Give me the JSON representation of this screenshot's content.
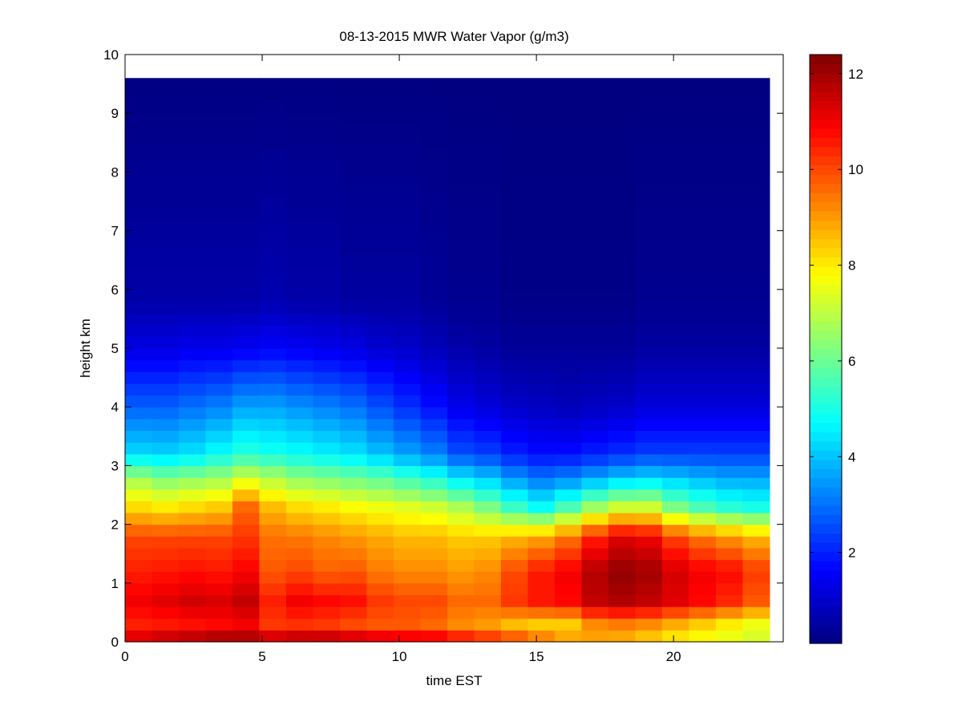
{
  "chart_data": {
    "type": "heatmap",
    "title": "08-13-2015 MWR Water Vapor (g/m3)",
    "xlabel": "time EST",
    "ylabel": "height km",
    "xlim": [
      0,
      24
    ],
    "ylim": [
      0,
      10
    ],
    "x_ticks": [
      "0",
      "5",
      "10",
      "15",
      "20"
    ],
    "x_tick_values": [
      0,
      5,
      10,
      15,
      20
    ],
    "y_ticks": [
      "0",
      "1",
      "2",
      "3",
      "4",
      "5",
      "6",
      "7",
      "8",
      "9",
      "10"
    ],
    "y_tick_values": [
      0,
      1,
      2,
      3,
      4,
      5,
      6,
      7,
      8,
      9,
      10
    ],
    "colorbar": {
      "min": 0.1,
      "max": 12.4,
      "colormap": "jet",
      "ticks": [
        "2",
        "4",
        "6",
        "8",
        "10",
        "12"
      ],
      "tick_values": [
        2,
        4,
        6,
        8,
        10,
        12
      ]
    },
    "x": [
      0,
      1,
      2,
      3,
      4,
      5,
      6,
      7,
      8,
      9,
      10,
      11,
      12,
      13,
      14,
      15,
      16,
      17,
      18,
      19,
      20,
      21,
      22,
      23
    ],
    "x_extent": [
      0,
      23.5
    ],
    "y_extent": [
      0,
      9.75
    ],
    "profiles": [
      [
        [
          0.0,
          11.5
        ],
        [
          0.3,
          10.5
        ],
        [
          0.7,
          11.0
        ],
        [
          1.2,
          10.5
        ],
        [
          1.8,
          10.0
        ],
        [
          2.3,
          8.2
        ],
        [
          2.8,
          6.6
        ],
        [
          3.2,
          4.3
        ],
        [
          4.0,
          2.8
        ],
        [
          5.0,
          1.3
        ],
        [
          5.8,
          0.6
        ],
        [
          9.75,
          0.1
        ]
      ],
      [
        [
          0.0,
          11.8
        ],
        [
          0.3,
          10.6
        ],
        [
          0.7,
          11.2
        ],
        [
          1.2,
          10.6
        ],
        [
          1.8,
          10.0
        ],
        [
          2.3,
          8.0
        ],
        [
          2.8,
          6.2
        ],
        [
          3.2,
          4.2
        ],
        [
          4.0,
          2.8
        ],
        [
          5.0,
          1.3
        ],
        [
          5.8,
          0.6
        ],
        [
          9.75,
          0.1
        ]
      ],
      [
        [
          0.0,
          12.0
        ],
        [
          0.3,
          10.7
        ],
        [
          0.7,
          11.4
        ],
        [
          1.2,
          10.7
        ],
        [
          1.8,
          10.0
        ],
        [
          2.3,
          8.2
        ],
        [
          2.8,
          6.4
        ],
        [
          3.2,
          4.4
        ],
        [
          4.0,
          3.0
        ],
        [
          5.0,
          1.4
        ],
        [
          5.8,
          0.6
        ],
        [
          9.75,
          0.1
        ]
      ],
      [
        [
          0.0,
          12.2
        ],
        [
          0.3,
          10.8
        ],
        [
          0.7,
          11.3
        ],
        [
          1.2,
          10.6
        ],
        [
          1.8,
          10.0
        ],
        [
          2.3,
          8.4
        ],
        [
          2.8,
          6.6
        ],
        [
          3.2,
          4.8
        ],
        [
          4.0,
          3.2
        ],
        [
          5.0,
          1.4
        ],
        [
          5.8,
          0.6
        ],
        [
          9.75,
          0.1
        ]
      ],
      [
        [
          0.0,
          12.1
        ],
        [
          0.3,
          11.0
        ],
        [
          0.7,
          11.6
        ],
        [
          1.2,
          10.9
        ],
        [
          1.8,
          10.2
        ],
        [
          2.3,
          9.6
        ],
        [
          2.8,
          7.2
        ],
        [
          3.2,
          5.2
        ],
        [
          4.0,
          3.6
        ],
        [
          5.0,
          1.5
        ],
        [
          5.8,
          0.6
        ],
        [
          9.75,
          0.1
        ]
      ],
      [
        [
          0.0,
          11.8
        ],
        [
          0.3,
          10.2
        ],
        [
          0.7,
          10.5
        ],
        [
          1.2,
          9.8
        ],
        [
          1.8,
          9.5
        ],
        [
          2.3,
          8.6
        ],
        [
          2.8,
          6.8
        ],
        [
          3.2,
          5.0
        ],
        [
          4.0,
          3.6
        ],
        [
          5.0,
          1.6
        ],
        [
          5.8,
          0.7
        ],
        [
          9.75,
          0.1
        ]
      ],
      [
        [
          0.0,
          12.0
        ],
        [
          0.3,
          10.3
        ],
        [
          0.7,
          11.0
        ],
        [
          1.2,
          10.0
        ],
        [
          1.8,
          9.4
        ],
        [
          2.3,
          8.2
        ],
        [
          2.8,
          6.4
        ],
        [
          3.2,
          4.8
        ],
        [
          4.0,
          3.4
        ],
        [
          5.0,
          1.5
        ],
        [
          5.8,
          0.6
        ],
        [
          9.75,
          0.1
        ]
      ],
      [
        [
          0.0,
          12.0
        ],
        [
          0.3,
          10.2
        ],
        [
          0.7,
          10.8
        ],
        [
          1.2,
          9.7
        ],
        [
          1.8,
          9.2
        ],
        [
          2.3,
          8.0
        ],
        [
          2.8,
          6.2
        ],
        [
          3.2,
          4.6
        ],
        [
          4.0,
          3.2
        ],
        [
          5.0,
          1.4
        ],
        [
          5.8,
          0.6
        ],
        [
          9.75,
          0.1
        ]
      ],
      [
        [
          0.0,
          11.8
        ],
        [
          0.3,
          10.0
        ],
        [
          0.7,
          10.7
        ],
        [
          1.2,
          9.8
        ],
        [
          1.8,
          9.0
        ],
        [
          2.3,
          7.8
        ],
        [
          2.8,
          6.0
        ],
        [
          3.2,
          4.4
        ],
        [
          4.0,
          3.0
        ],
        [
          5.0,
          1.3
        ],
        [
          5.8,
          0.5
        ],
        [
          9.75,
          0.1
        ]
      ],
      [
        [
          0.0,
          11.6
        ],
        [
          0.3,
          9.8
        ],
        [
          0.7,
          10.2
        ],
        [
          1.2,
          9.4
        ],
        [
          1.8,
          8.8
        ],
        [
          2.3,
          7.6
        ],
        [
          2.8,
          5.8
        ],
        [
          3.2,
          4.0
        ],
        [
          4.0,
          2.6
        ],
        [
          5.0,
          1.1
        ],
        [
          5.8,
          0.5
        ],
        [
          9.75,
          0.1
        ]
      ],
      [
        [
          0.0,
          11.4
        ],
        [
          0.3,
          9.8
        ],
        [
          0.7,
          10.0
        ],
        [
          1.2,
          9.2
        ],
        [
          1.8,
          8.6
        ],
        [
          2.3,
          7.4
        ],
        [
          2.8,
          5.4
        ],
        [
          3.2,
          3.6
        ],
        [
          4.0,
          2.2
        ],
        [
          5.0,
          1.0
        ],
        [
          5.8,
          0.5
        ],
        [
          9.75,
          0.1
        ]
      ],
      [
        [
          0.0,
          11.4
        ],
        [
          0.3,
          9.6
        ],
        [
          0.7,
          10.0
        ],
        [
          1.2,
          9.2
        ],
        [
          1.8,
          8.6
        ],
        [
          2.3,
          7.2
        ],
        [
          2.8,
          5.0
        ],
        [
          3.2,
          3.2
        ],
        [
          4.0,
          1.8
        ],
        [
          5.0,
          0.8
        ],
        [
          5.8,
          0.4
        ],
        [
          9.75,
          0.1
        ]
      ],
      [
        [
          0.0,
          11.0
        ],
        [
          0.3,
          9.2
        ],
        [
          0.7,
          9.6
        ],
        [
          1.2,
          9.0
        ],
        [
          1.8,
          8.4
        ],
        [
          2.3,
          6.8
        ],
        [
          2.8,
          4.4
        ],
        [
          3.2,
          2.6
        ],
        [
          4.0,
          1.4
        ],
        [
          5.0,
          0.6
        ],
        [
          5.8,
          0.3
        ],
        [
          9.75,
          0.1
        ]
      ],
      [
        [
          0.0,
          10.6
        ],
        [
          0.3,
          9.0
        ],
        [
          0.7,
          9.6
        ],
        [
          1.2,
          9.2
        ],
        [
          1.8,
          8.4
        ],
        [
          2.3,
          6.2
        ],
        [
          2.8,
          4.0
        ],
        [
          3.2,
          2.4
        ],
        [
          4.0,
          1.2
        ],
        [
          5.0,
          0.5
        ],
        [
          5.8,
          0.3
        ],
        [
          9.75,
          0.1
        ]
      ],
      [
        [
          0.0,
          10.2
        ],
        [
          0.3,
          8.6
        ],
        [
          0.7,
          10.2
        ],
        [
          1.2,
          10.0
        ],
        [
          1.8,
          8.6
        ],
        [
          2.3,
          5.4
        ],
        [
          2.8,
          3.4
        ],
        [
          3.2,
          2.0
        ],
        [
          4.0,
          1.0
        ],
        [
          5.0,
          0.4
        ],
        [
          5.8,
          0.2
        ],
        [
          9.75,
          0.1
        ]
      ],
      [
        [
          0.0,
          9.6
        ],
        [
          0.3,
          8.4
        ],
        [
          0.7,
          10.6
        ],
        [
          1.2,
          10.6
        ],
        [
          1.8,
          8.8
        ],
        [
          2.3,
          4.8
        ],
        [
          2.8,
          3.0
        ],
        [
          3.2,
          1.8
        ],
        [
          4.0,
          0.9
        ],
        [
          5.0,
          0.4
        ],
        [
          5.8,
          0.2
        ],
        [
          9.75,
          0.1
        ]
      ],
      [
        [
          0.0,
          9.0
        ],
        [
          0.3,
          8.4
        ],
        [
          0.7,
          10.8
        ],
        [
          1.2,
          11.0
        ],
        [
          1.8,
          9.4
        ],
        [
          2.3,
          5.6
        ],
        [
          2.8,
          3.2
        ],
        [
          3.2,
          1.8
        ],
        [
          4.0,
          0.8
        ],
        [
          5.0,
          0.4
        ],
        [
          5.8,
          0.2
        ],
        [
          9.75,
          0.1
        ]
      ],
      [
        [
          0.0,
          8.8
        ],
        [
          0.3,
          9.2
        ],
        [
          0.7,
          11.6
        ],
        [
          1.2,
          11.8
        ],
        [
          1.8,
          10.4
        ],
        [
          2.3,
          6.6
        ],
        [
          2.8,
          3.6
        ],
        [
          3.2,
          2.0
        ],
        [
          4.0,
          0.9
        ],
        [
          5.0,
          0.4
        ],
        [
          5.8,
          0.2
        ],
        [
          9.75,
          0.1
        ]
      ],
      [
        [
          0.0,
          8.6
        ],
        [
          0.3,
          9.4
        ],
        [
          0.7,
          11.8
        ],
        [
          1.2,
          12.2
        ],
        [
          1.8,
          11.2
        ],
        [
          2.3,
          7.2
        ],
        [
          2.8,
          4.0
        ],
        [
          3.2,
          2.2
        ],
        [
          4.0,
          1.0
        ],
        [
          5.0,
          0.4
        ],
        [
          5.8,
          0.2
        ],
        [
          9.75,
          0.1
        ]
      ],
      [
        [
          0.0,
          8.2
        ],
        [
          0.3,
          9.2
        ],
        [
          0.7,
          11.6
        ],
        [
          1.2,
          12.0
        ],
        [
          1.8,
          11.0
        ],
        [
          2.3,
          7.2
        ],
        [
          2.8,
          4.2
        ],
        [
          3.2,
          2.4
        ],
        [
          4.0,
          1.2
        ],
        [
          5.0,
          0.5
        ],
        [
          5.8,
          0.3
        ],
        [
          9.75,
          0.1
        ]
      ],
      [
        [
          0.0,
          7.8
        ],
        [
          0.3,
          8.8
        ],
        [
          0.7,
          11.2
        ],
        [
          1.2,
          11.4
        ],
        [
          1.8,
          10.0
        ],
        [
          2.3,
          6.2
        ],
        [
          2.8,
          4.0
        ],
        [
          3.2,
          2.4
        ],
        [
          4.0,
          1.2
        ],
        [
          5.0,
          0.5
        ],
        [
          5.8,
          0.3
        ],
        [
          9.75,
          0.1
        ]
      ],
      [
        [
          0.0,
          7.6
        ],
        [
          0.3,
          8.4
        ],
        [
          0.7,
          10.8
        ],
        [
          1.2,
          11.0
        ],
        [
          1.8,
          9.4
        ],
        [
          2.3,
          5.6
        ],
        [
          2.8,
          3.8
        ],
        [
          3.2,
          2.4
        ],
        [
          4.0,
          1.2
        ],
        [
          5.0,
          0.5
        ],
        [
          5.8,
          0.3
        ],
        [
          9.75,
          0.1
        ]
      ],
      [
        [
          0.0,
          7.4
        ],
        [
          0.3,
          8.0
        ],
        [
          0.7,
          10.4
        ],
        [
          1.2,
          10.8
        ],
        [
          1.8,
          9.0
        ],
        [
          2.3,
          5.2
        ],
        [
          2.8,
          3.6
        ],
        [
          3.2,
          2.4
        ],
        [
          4.0,
          1.2
        ],
        [
          5.0,
          0.5
        ],
        [
          5.8,
          0.3
        ],
        [
          9.75,
          0.1
        ]
      ],
      [
        [
          0.0,
          7.2
        ],
        [
          0.3,
          7.6
        ],
        [
          0.7,
          9.8
        ],
        [
          1.2,
          10.2
        ],
        [
          1.8,
          8.6
        ],
        [
          2.3,
          5.0
        ],
        [
          2.8,
          3.6
        ],
        [
          3.2,
          2.4
        ],
        [
          4.0,
          1.2
        ],
        [
          5.0,
          0.5
        ],
        [
          5.8,
          0.3
        ],
        [
          9.75,
          0.1
        ]
      ]
    ]
  }
}
